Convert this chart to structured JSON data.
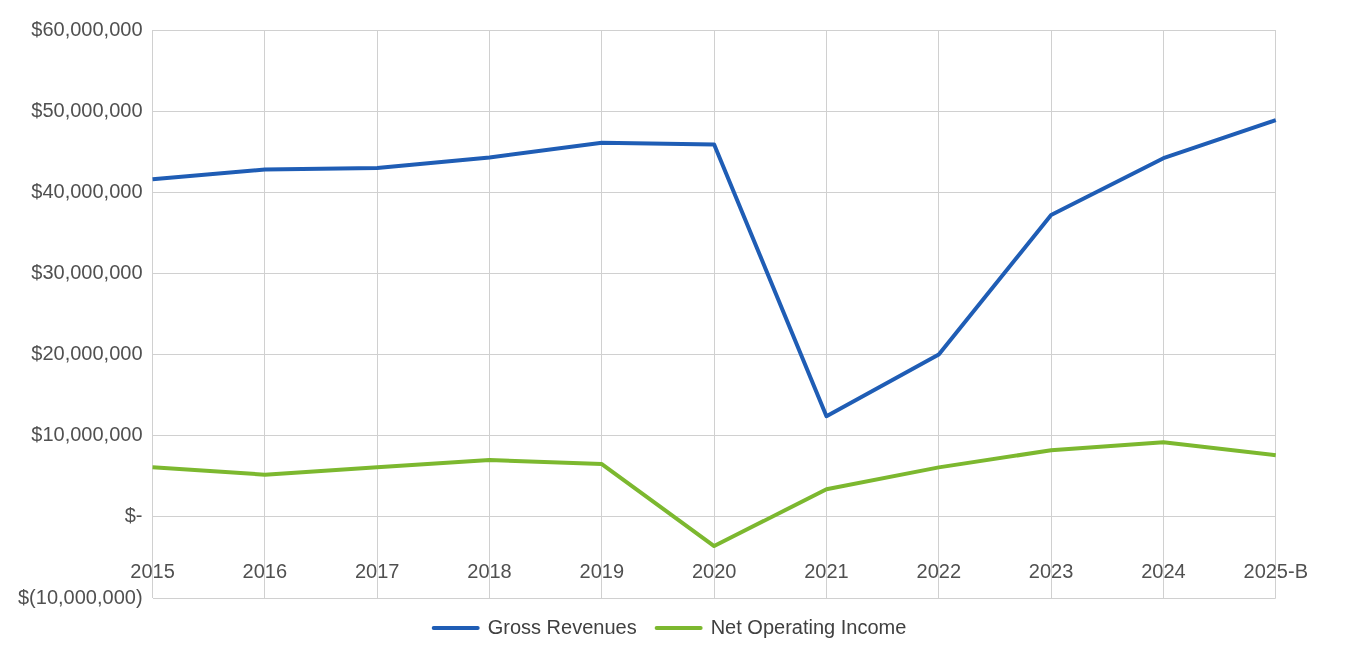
{
  "chart_data": {
    "type": "line",
    "categories": [
      "2015",
      "2016",
      "2017",
      "2018",
      "2019",
      "2020",
      "2021",
      "2022",
      "2023",
      "2024",
      "2025-B"
    ],
    "series": [
      {
        "name": "Gross Revenues",
        "color": "#1f5db5",
        "values": [
          41600000,
          42800000,
          43000000,
          44300000,
          46100000,
          45900000,
          12400000,
          20000000,
          37200000,
          44200000,
          48900000
        ]
      },
      {
        "name": "Net Operating Income",
        "color": "#7cb82f",
        "values": [
          6100000,
          5200000,
          6100000,
          7000000,
          6500000,
          -3600000,
          3400000,
          6100000,
          8200000,
          9200000,
          7600000
        ]
      }
    ],
    "ylim": [
      -10000000,
      60000000
    ],
    "yticks": [
      {
        "value": -10000000,
        "label": "$(10,000,000)"
      },
      {
        "value": 0,
        "label": "$-"
      },
      {
        "value": 10000000,
        "label": "$10,000,000"
      },
      {
        "value": 20000000,
        "label": "$20,000,000"
      },
      {
        "value": 30000000,
        "label": "$30,000,000"
      },
      {
        "value": 40000000,
        "label": "$40,000,000"
      },
      {
        "value": 50000000,
        "label": "$50,000,000"
      },
      {
        "value": 60000000,
        "label": "$60,000,000"
      }
    ],
    "grid": true,
    "legend": "bottom",
    "marker": "none",
    "line_style": "solid"
  }
}
